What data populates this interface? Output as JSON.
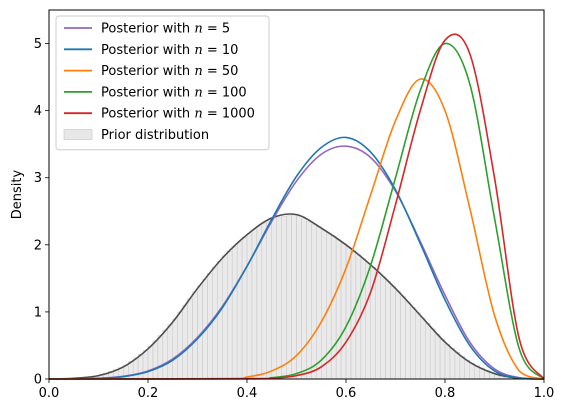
{
  "chart_data": {
    "type": "line",
    "xlabel": "",
    "ylabel": "Density",
    "xlim": [
      0,
      1
    ],
    "ylim": [
      0,
      5.5
    ],
    "x_ticks": [
      0.0,
      0.2,
      0.4,
      0.6,
      0.8,
      1.0
    ],
    "x_tick_labels": [
      "0.0",
      "0.2",
      "0.4",
      "0.6",
      "0.8",
      "1.0"
    ],
    "y_ticks": [
      0,
      1,
      2,
      3,
      4,
      5
    ],
    "y_tick_labels": [
      "0",
      "1",
      "2",
      "3",
      "4",
      "5"
    ],
    "grid": false,
    "legend_position": "top-left",
    "series": [
      {
        "name": "Posterior with n = 5",
        "legend_prefix": "Posterior with ",
        "legend_var": "n",
        "legend_suffix": " = 5",
        "color": "#9467bd",
        "x": [
          0.0,
          0.05,
          0.1,
          0.15,
          0.2,
          0.25,
          0.3,
          0.35,
          0.4,
          0.45,
          0.5,
          0.55,
          0.6,
          0.65,
          0.7,
          0.75,
          0.8,
          0.85,
          0.9,
          0.95,
          1.0
        ],
        "y": [
          0.0,
          0.001,
          0.01,
          0.04,
          0.12,
          0.3,
          0.62,
          1.08,
          1.68,
          2.35,
          2.95,
          3.35,
          3.47,
          3.3,
          2.8,
          2.05,
          1.25,
          0.55,
          0.15,
          0.02,
          0.0
        ]
      },
      {
        "name": "Posterior with n = 10",
        "legend_prefix": "Posterior with ",
        "legend_var": "n",
        "legend_suffix": " = 10",
        "color": "#1f77b4",
        "x": [
          0.0,
          0.05,
          0.1,
          0.15,
          0.2,
          0.25,
          0.3,
          0.35,
          0.4,
          0.45,
          0.5,
          0.55,
          0.6,
          0.65,
          0.7,
          0.75,
          0.8,
          0.85,
          0.9,
          0.95,
          1.0
        ],
        "y": [
          0.0,
          0.001,
          0.008,
          0.035,
          0.11,
          0.28,
          0.6,
          1.06,
          1.68,
          2.38,
          3.02,
          3.45,
          3.6,
          3.38,
          2.82,
          2.02,
          1.18,
          0.5,
          0.12,
          0.015,
          0.0
        ]
      },
      {
        "name": "Posterior with n = 50",
        "legend_prefix": "Posterior with ",
        "legend_var": "n",
        "legend_suffix": " = 50",
        "color": "#ff7f0e",
        "x": [
          0.0,
          0.35,
          0.4,
          0.45,
          0.5,
          0.55,
          0.6,
          0.65,
          0.7,
          0.75,
          0.8,
          0.85,
          0.9,
          0.95,
          1.0
        ],
        "y": [
          0.0,
          0.005,
          0.03,
          0.12,
          0.35,
          0.85,
          1.65,
          2.75,
          3.85,
          4.47,
          4.0,
          2.55,
          0.95,
          0.12,
          0.0
        ]
      },
      {
        "name": "Posterior with n = 100",
        "legend_prefix": "Posterior with ",
        "legend_var": "n",
        "legend_suffix": " = 100",
        "color": "#2ca02c",
        "x": [
          0.0,
          0.4,
          0.45,
          0.5,
          0.55,
          0.6,
          0.65,
          0.7,
          0.75,
          0.8,
          0.85,
          0.9,
          0.95,
          1.0
        ],
        "y": [
          0.0,
          0.005,
          0.02,
          0.08,
          0.28,
          0.78,
          1.7,
          3.0,
          4.3,
          5.0,
          4.4,
          2.4,
          0.45,
          0.0
        ]
      },
      {
        "name": "Posterior with n = 1000",
        "legend_prefix": "Posterior with ",
        "legend_var": "n",
        "legend_suffix": " = 1000",
        "color": "#d62728",
        "x": [
          0.0,
          0.4,
          0.45,
          0.5,
          0.55,
          0.6,
          0.65,
          0.7,
          0.75,
          0.8,
          0.85,
          0.9,
          0.95,
          1.0
        ],
        "y": [
          0.0,
          0.003,
          0.012,
          0.05,
          0.18,
          0.55,
          1.3,
          2.6,
          4.0,
          5.05,
          4.85,
          3.0,
          0.6,
          0.0
        ]
      }
    ],
    "prior": {
      "name": "Prior distribution",
      "kde_color": "#4d4d4d",
      "fill_color": "#d9d9d9",
      "x": [
        0.0,
        0.05,
        0.1,
        0.15,
        0.2,
        0.25,
        0.3,
        0.35,
        0.4,
        0.45,
        0.5,
        0.55,
        0.6,
        0.65,
        0.7,
        0.75,
        0.8,
        0.85,
        0.9,
        0.95,
        1.0
      ],
      "y": [
        0.0,
        0.01,
        0.05,
        0.18,
        0.45,
        0.85,
        1.35,
        1.8,
        2.15,
        2.4,
        2.45,
        2.25,
        2.0,
        1.7,
        1.35,
        0.95,
        0.55,
        0.25,
        0.08,
        0.01,
        0.0
      ]
    }
  }
}
